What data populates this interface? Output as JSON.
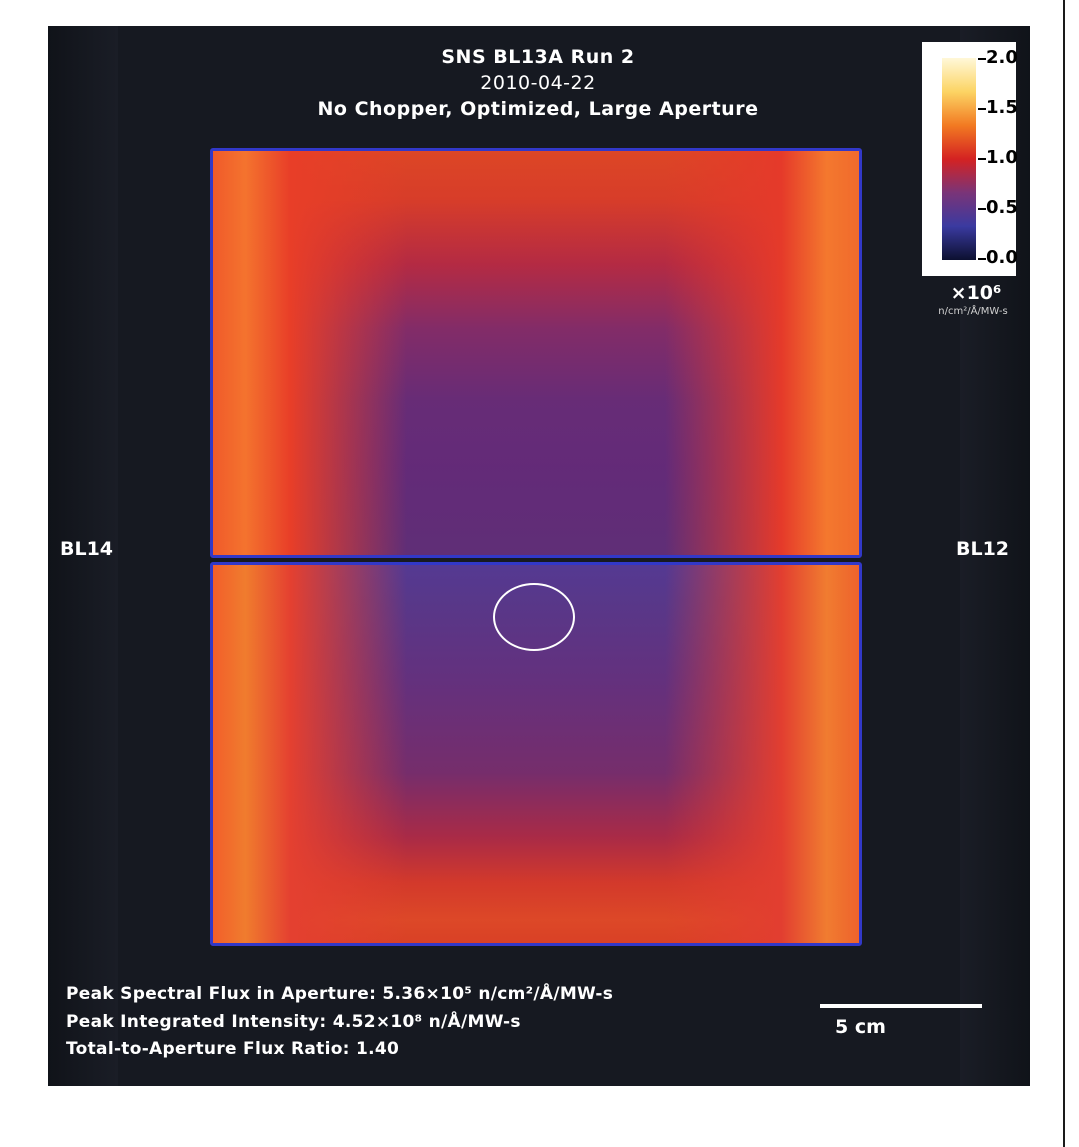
{
  "chart_data": {
    "type": "heatmap",
    "title": "SNS BL13A Run 2",
    "subtitle_date": "2010-04-22",
    "subtitle_config": "No Chopper, Optimized, Large Aperture",
    "colorbar": {
      "ticks": [
        "2.0",
        "1.5",
        "1.0",
        "0.5",
        "0.0"
      ],
      "range": [
        0.0,
        2.0
      ],
      "multiplier": "×10⁶",
      "unit": "n/cm²/Å/MW-s",
      "colors": [
        "#0c1030",
        "#3a3aa0",
        "#7a3478",
        "#d42222",
        "#f27a22",
        "#fcd464",
        "#fff8d8"
      ]
    },
    "side_labels": {
      "left": "BL14",
      "right": "BL12"
    },
    "annotations": {
      "peak_spectral_flux": "Peak Spectral Flux in Aperture: 5.36×10⁵ n/cm²/Å/MW-s",
      "peak_integrated": "Peak Integrated Intensity: 4.52×10⁸ n/Å/MW-s",
      "flux_ratio": "Total-to-Aperture Flux Ratio: 1.40"
    },
    "scale_bar_label": "5 cm"
  }
}
